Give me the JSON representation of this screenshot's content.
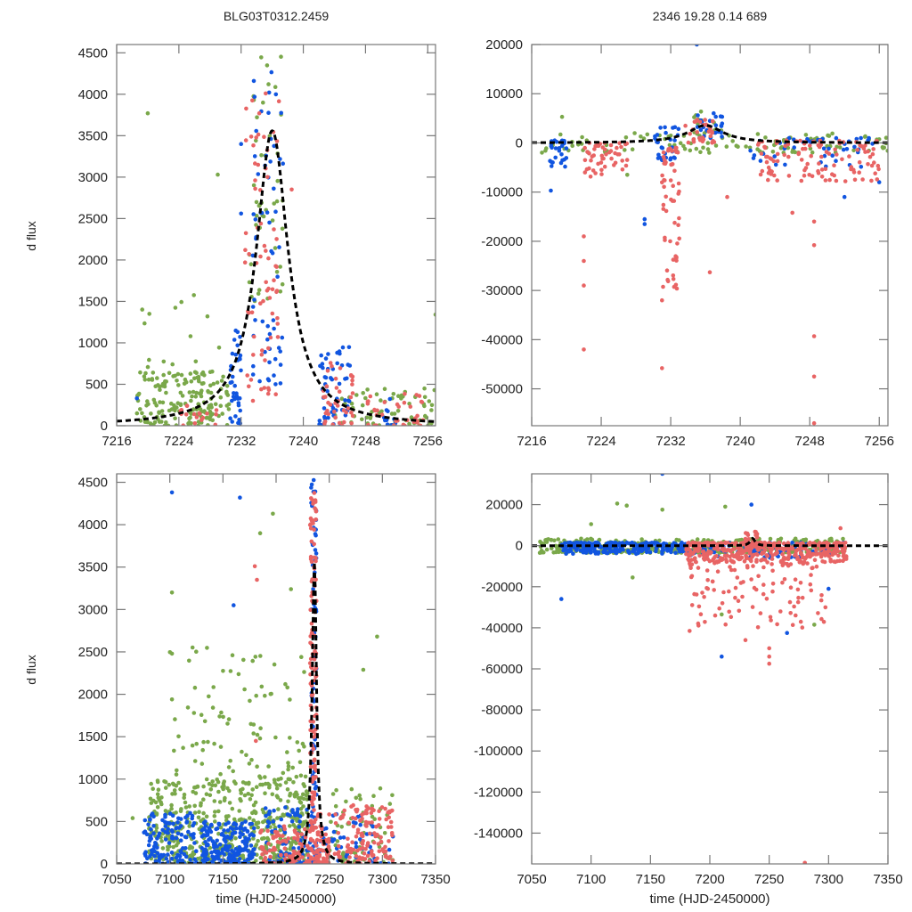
{
  "figure": {
    "title_left": "BLG03T0312.2459",
    "title_right": "2346  19.28  0.14  689",
    "colors": {
      "green": "#7aa84a",
      "blue": "#1155e0",
      "red": "#e86464",
      "model": "#000000",
      "axis": "#777777"
    },
    "series_names": [
      "green",
      "blue",
      "red"
    ]
  },
  "chart_data": [
    {
      "id": "top-left",
      "type": "scatter",
      "title": "BLG03T0312.2459",
      "xlabel": "",
      "ylabel": "d flux",
      "xlim": [
        7216,
        7257
      ],
      "ylim": [
        0,
        4600
      ],
      "xticks": [
        7216,
        7224,
        7232,
        7240,
        7248,
        7256
      ],
      "yticks": [
        0,
        500,
        1000,
        1500,
        2000,
        2500,
        3000,
        3500,
        4000,
        4500
      ],
      "model": {
        "type": "microlensing",
        "t0": 7236.0,
        "peak": 3560,
        "width": 2.5,
        "baseline": 0
      },
      "clusters": [
        {
          "series": "green",
          "x": [
            7218.5,
            7230.5
          ],
          "y": [
            0,
            650
          ],
          "n": 170
        },
        {
          "series": "green",
          "x": [
            7219,
            7230
          ],
          "y": [
            600,
            1600
          ],
          "n": 18
        },
        {
          "series": "green",
          "x": [
            7233,
            7237.5
          ],
          "y": [
            1500,
            4600
          ],
          "n": 45
        },
        {
          "series": "green",
          "x": [
            7244,
            7257
          ],
          "y": [
            0,
            450
          ],
          "n": 70
        },
        {
          "series": "blue",
          "x": [
            7230.5,
            7232
          ],
          "y": [
            0,
            1200
          ],
          "n": 35
        },
        {
          "series": "blue",
          "x": [
            7233.5,
            7237.5
          ],
          "y": [
            500,
            4600
          ],
          "n": 60
        },
        {
          "series": "blue",
          "x": [
            7242,
            7246
          ],
          "y": [
            0,
            1000
          ],
          "n": 55
        },
        {
          "series": "blue",
          "x": [
            7249,
            7252
          ],
          "y": [
            0,
            350
          ],
          "n": 10
        },
        {
          "series": "red",
          "x": [
            7224,
            7229
          ],
          "y": [
            0,
            250
          ],
          "n": 18
        },
        {
          "series": "red",
          "x": [
            7232.5,
            7237
          ],
          "y": [
            300,
            4200
          ],
          "n": 70
        },
        {
          "series": "red",
          "x": [
            7242.5,
            7246.5
          ],
          "y": [
            0,
            800
          ],
          "n": 40
        },
        {
          "series": "red",
          "x": [
            7248,
            7256
          ],
          "y": [
            0,
            400
          ],
          "n": 35
        }
      ],
      "outliers": [
        {
          "series": "green",
          "x": 7220.0,
          "y": 3770
        },
        {
          "series": "green",
          "x": 7220.2,
          "y": 1350
        },
        {
          "series": "green",
          "x": 7229.0,
          "y": 3030
        },
        {
          "series": "green",
          "x": 7257.0,
          "y": 1340
        },
        {
          "series": "blue",
          "x": 7218.6,
          "y": 330
        },
        {
          "series": "blue",
          "x": 7232.0,
          "y": 3400
        },
        {
          "series": "blue",
          "x": 7232.0,
          "y": 2560
        },
        {
          "series": "red",
          "x": 7238.5,
          "y": 2850
        }
      ]
    },
    {
      "id": "top-right",
      "type": "scatter",
      "title": "2346  19.28  0.14  689",
      "xlabel": "",
      "ylabel": "",
      "xlim": [
        7216,
        7257
      ],
      "ylim": [
        -57500,
        20000
      ],
      "xticks": [
        7216,
        7224,
        7232,
        7240,
        7248,
        7256
      ],
      "yticks": [
        -50000,
        -40000,
        -30000,
        -20000,
        -10000,
        0,
        10000,
        20000
      ],
      "model": {
        "type": "microlensing",
        "t0": 7236.0,
        "peak": 3560,
        "width": 2.5,
        "baseline": 0
      },
      "clusters": [
        {
          "series": "green",
          "x": [
            7217,
            7257
          ],
          "y": [
            -2000,
            2000
          ],
          "n": 110
        },
        {
          "series": "green",
          "x": [
            7234,
            7238
          ],
          "y": [
            1000,
            7000
          ],
          "n": 20
        },
        {
          "series": "blue",
          "x": [
            7218,
            7220
          ],
          "y": [
            -5000,
            500
          ],
          "n": 30
        },
        {
          "series": "blue",
          "x": [
            7230,
            7233
          ],
          "y": [
            -3500,
            3500
          ],
          "n": 30
        },
        {
          "series": "blue",
          "x": [
            7235,
            7238
          ],
          "y": [
            1000,
            6500
          ],
          "n": 25
        },
        {
          "series": "blue",
          "x": [
            7241,
            7256
          ],
          "y": [
            -5000,
            1000
          ],
          "n": 45
        },
        {
          "series": "red",
          "x": [
            7222,
            7227
          ],
          "y": [
            -7000,
            0
          ],
          "n": 50
        },
        {
          "series": "red",
          "x": [
            7231,
            7233
          ],
          "y": [
            -30000,
            -1000
          ],
          "n": 60
        },
        {
          "series": "red",
          "x": [
            7233.5,
            7237
          ],
          "y": [
            0,
            5000
          ],
          "n": 30
        },
        {
          "series": "red",
          "x": [
            7242,
            7256
          ],
          "y": [
            -8000,
            500
          ],
          "n": 110
        }
      ],
      "outliers": [
        {
          "series": "red",
          "x": 7222.0,
          "y": -42000
        },
        {
          "series": "red",
          "x": 7222.0,
          "y": -29000
        },
        {
          "series": "red",
          "x": 7222.0,
          "y": -24000
        },
        {
          "series": "red",
          "x": 7222.0,
          "y": -19000
        },
        {
          "series": "red",
          "x": 7231.0,
          "y": -45800
        },
        {
          "series": "red",
          "x": 7231.0,
          "y": -32000
        },
        {
          "series": "red",
          "x": 7236.5,
          "y": -26300
        },
        {
          "series": "red",
          "x": 7248.5,
          "y": -57000
        },
        {
          "series": "red",
          "x": 7248.5,
          "y": -47500
        },
        {
          "series": "red",
          "x": 7248.5,
          "y": -39300
        },
        {
          "series": "red",
          "x": 7248.5,
          "y": -20800
        },
        {
          "series": "red",
          "x": 7248.5,
          "y": -16000
        },
        {
          "series": "red",
          "x": 7238.5,
          "y": -11000
        },
        {
          "series": "red",
          "x": 7246.0,
          "y": -14200
        },
        {
          "series": "blue",
          "x": 7235.0,
          "y": 20000
        },
        {
          "series": "blue",
          "x": 7229.0,
          "y": -15500
        },
        {
          "series": "blue",
          "x": 7229.0,
          "y": -16500
        },
        {
          "series": "blue",
          "x": 7218.2,
          "y": -9700
        },
        {
          "series": "blue",
          "x": 7252.0,
          "y": -11000
        },
        {
          "series": "blue",
          "x": 7256.0,
          "y": -8000
        },
        {
          "series": "green",
          "x": 7219.5,
          "y": 5300
        },
        {
          "series": "green",
          "x": 7227.0,
          "y": -6500
        }
      ]
    },
    {
      "id": "bottom-left",
      "type": "scatter",
      "title": "",
      "xlabel": "time (HJD-2450000)",
      "ylabel": "d flux",
      "xlim": [
        7050,
        7350
      ],
      "ylim": [
        0,
        4600
      ],
      "xticks": [
        7050,
        7100,
        7150,
        7200,
        7250,
        7300,
        7350
      ],
      "yticks": [
        0,
        500,
        1000,
        1500,
        2000,
        2500,
        3000,
        3500,
        4000,
        4500
      ],
      "model": {
        "type": "microlensing",
        "t0": 7236.0,
        "peak": 3560,
        "width": 2.5,
        "baseline": 0
      },
      "clusters": [
        {
          "series": "green",
          "x": [
            7080,
            7230
          ],
          "y": [
            0,
            1000
          ],
          "n": 520
        },
        {
          "series": "green",
          "x": [
            7100,
            7230
          ],
          "y": [
            1000,
            2600
          ],
          "n": 90
        },
        {
          "series": "green",
          "x": [
            7250,
            7310
          ],
          "y": [
            0,
            900
          ],
          "n": 70
        },
        {
          "series": "blue",
          "x": [
            7075,
            7125
          ],
          "y": [
            0,
            600
          ],
          "n": 130
        },
        {
          "series": "blue",
          "x": [
            7130,
            7180
          ],
          "y": [
            0,
            500
          ],
          "n": 200
        },
        {
          "series": "blue",
          "x": [
            7190,
            7235
          ],
          "y": [
            0,
            700
          ],
          "n": 80
        },
        {
          "series": "blue",
          "x": [
            7233,
            7238
          ],
          "y": [
            0,
            4600
          ],
          "n": 80
        },
        {
          "series": "blue",
          "x": [
            7238,
            7310
          ],
          "y": [
            0,
            600
          ],
          "n": 50
        },
        {
          "series": "red",
          "x": [
            7185,
            7232
          ],
          "y": [
            0,
            450
          ],
          "n": 90
        },
        {
          "series": "red",
          "x": [
            7232,
            7238
          ],
          "y": [
            0,
            4400
          ],
          "n": 140
        },
        {
          "series": "red",
          "x": [
            7238,
            7250
          ],
          "y": [
            0,
            600
          ],
          "n": 60
        },
        {
          "series": "red",
          "x": [
            7255,
            7310
          ],
          "y": [
            0,
            700
          ],
          "n": 130
        }
      ],
      "outliers": [
        {
          "series": "blue",
          "x": 7102,
          "y": 4380
        },
        {
          "series": "blue",
          "x": 7166,
          "y": 4320
        },
        {
          "series": "blue",
          "x": 7160,
          "y": 3050
        },
        {
          "series": "green",
          "x": 7102,
          "y": 3200
        },
        {
          "series": "green",
          "x": 7102,
          "y": 2480
        },
        {
          "series": "green",
          "x": 7102,
          "y": 1940
        },
        {
          "series": "green",
          "x": 7197,
          "y": 4130
        },
        {
          "series": "green",
          "x": 7214,
          "y": 3240
        },
        {
          "series": "green",
          "x": 7185,
          "y": 3900
        },
        {
          "series": "green",
          "x": 7295,
          "y": 2680
        },
        {
          "series": "green",
          "x": 7282,
          "y": 2290
        },
        {
          "series": "red",
          "x": 7180,
          "y": 3510
        },
        {
          "series": "red",
          "x": 7182,
          "y": 3350
        },
        {
          "series": "red",
          "x": 7181,
          "y": 1450
        },
        {
          "series": "green",
          "x": 7065,
          "y": 540
        }
      ]
    },
    {
      "id": "bottom-right",
      "type": "scatter",
      "title": "",
      "xlabel": "time (HJD-2450000)",
      "ylabel": "",
      "xlim": [
        7050,
        7350
      ],
      "ylim": [
        -155000,
        35000
      ],
      "xticks": [
        7050,
        7100,
        7150,
        7200,
        7250,
        7300,
        7350
      ],
      "yticks": [
        -140000,
        -120000,
        -100000,
        -80000,
        -60000,
        -40000,
        -20000,
        0,
        20000
      ],
      "model": {
        "type": "microlensing",
        "t0": 7236.0,
        "peak": 3560,
        "width": 2.5,
        "baseline": 0
      },
      "clusters": [
        {
          "series": "green",
          "x": [
            7055,
            7315
          ],
          "y": [
            -3500,
            3500
          ],
          "n": 360
        },
        {
          "series": "blue",
          "x": [
            7075,
            7180
          ],
          "y": [
            -4000,
            1500
          ],
          "n": 260
        },
        {
          "series": "blue",
          "x": [
            7180,
            7315
          ],
          "y": [
            -6000,
            1500
          ],
          "n": 90
        },
        {
          "series": "red",
          "x": [
            7180,
            7315
          ],
          "y": [
            -8000,
            1500
          ],
          "n": 420
        },
        {
          "series": "red",
          "x": [
            7182,
            7300
          ],
          "y": [
            -40000,
            -8000
          ],
          "n": 110
        },
        {
          "series": "red",
          "x": [
            7230,
            7240
          ],
          "y": [
            0,
            7000
          ],
          "n": 25
        }
      ],
      "outliers": [
        {
          "series": "blue",
          "x": 7160,
          "y": 35000
        },
        {
          "series": "blue",
          "x": 7235,
          "y": 20000
        },
        {
          "series": "blue",
          "x": 7075,
          "y": -26000
        },
        {
          "series": "blue",
          "x": 7210,
          "y": -54000
        },
        {
          "series": "blue",
          "x": 7265,
          "y": -42500
        },
        {
          "series": "blue",
          "x": 7300,
          "y": -21000
        },
        {
          "series": "green",
          "x": 7122,
          "y": 20500
        },
        {
          "series": "green",
          "x": 7130,
          "y": 19500
        },
        {
          "series": "green",
          "x": 7160,
          "y": 17500
        },
        {
          "series": "green",
          "x": 7213,
          "y": 19000
        },
        {
          "series": "green",
          "x": 7100,
          "y": 10500
        },
        {
          "series": "green",
          "x": 7135,
          "y": -15500
        },
        {
          "series": "green",
          "x": 7210,
          "y": -33500
        },
        {
          "series": "green",
          "x": 7288,
          "y": -38500
        },
        {
          "series": "red",
          "x": 7183,
          "y": -41500
        },
        {
          "series": "red",
          "x": 7250,
          "y": -57500
        },
        {
          "series": "red",
          "x": 7250,
          "y": -54000
        },
        {
          "series": "red",
          "x": 7250,
          "y": -50000
        },
        {
          "series": "red",
          "x": 7230,
          "y": -46000
        },
        {
          "series": "red",
          "x": 7280,
          "y": -154500
        },
        {
          "series": "red",
          "x": 7310,
          "y": 8500
        }
      ]
    }
  ]
}
